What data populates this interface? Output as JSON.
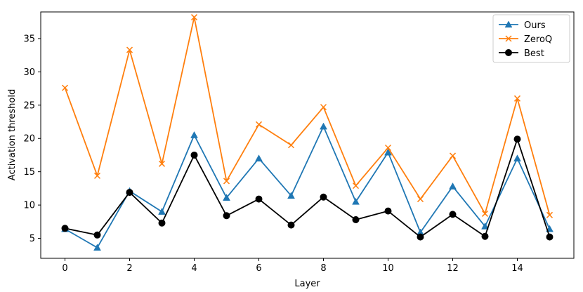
{
  "chart_data": {
    "type": "line",
    "title": "",
    "xlabel": "Layer",
    "ylabel": "Activation threshold",
    "x": [
      0,
      1,
      2,
      3,
      4,
      5,
      6,
      7,
      8,
      9,
      10,
      11,
      12,
      13,
      14,
      15
    ],
    "xlim": [
      -0.75,
      15.75
    ],
    "ylim": [
      2,
      39
    ],
    "xticks": [
      "0",
      "2",
      "4",
      "6",
      "8",
      "10",
      "12",
      "14"
    ],
    "xtick_values": [
      0,
      2,
      4,
      6,
      8,
      10,
      12,
      14
    ],
    "yticks": [
      "5",
      "10",
      "15",
      "20",
      "25",
      "30",
      "35"
    ],
    "ytick_values": [
      5,
      10,
      15,
      20,
      25,
      30,
      35
    ],
    "grid": false,
    "legend_position": "top-right",
    "series": [
      {
        "name": "Ours",
        "color": "#1f77b4",
        "marker": "triangle",
        "values": [
          6.4,
          3.6,
          12.1,
          9.0,
          20.5,
          11.1,
          17.0,
          11.4,
          21.8,
          10.5,
          17.9,
          5.9,
          12.8,
          6.8,
          17.0,
          6.4
        ]
      },
      {
        "name": "ZeroQ",
        "color": "#ff7f0e",
        "marker": "x",
        "values": [
          27.6,
          14.4,
          33.3,
          16.2,
          38.2,
          13.6,
          22.1,
          19.0,
          24.7,
          12.9,
          18.6,
          10.9,
          17.4,
          8.7,
          26.0,
          8.5
        ]
      },
      {
        "name": "Best",
        "color": "#000000",
        "marker": "circle",
        "values": [
          6.5,
          5.5,
          11.9,
          7.3,
          17.5,
          8.4,
          10.9,
          7.0,
          11.2,
          7.8,
          9.1,
          5.2,
          8.6,
          5.3,
          19.9,
          5.2
        ]
      }
    ]
  }
}
